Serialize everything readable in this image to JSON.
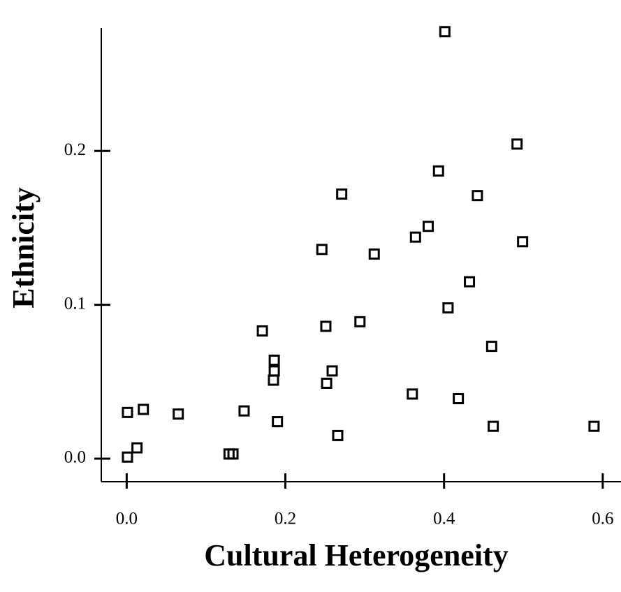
{
  "chart_data": {
    "type": "scatter",
    "x_label": "Cultural Heterogeneity",
    "y_label": "Ethnicity",
    "color": "#000000",
    "xlim": [
      -0.032,
      0.623
    ],
    "ylim": [
      -0.015,
      0.28
    ],
    "xticks": [
      {
        "value": 0,
        "label": "0.0"
      },
      0.2,
      0.4,
      0.6
    ],
    "yticks": [
      {
        "value": 0,
        "label": "0.0"
      },
      0.1,
      0.2
    ],
    "grid": false,
    "x": [
      0.401,
      0.492,
      0.393,
      0.271,
      0.442,
      0.38,
      0.364,
      0.499,
      0.246,
      0.312,
      0.432,
      0.405,
      0.171,
      0.294,
      0.251,
      0.46,
      0.186,
      0.186,
      0.185,
      0.259,
      0.252,
      0.36,
      0.418,
      0.001,
      0.021,
      0.065,
      0.148,
      0.19,
      0.266,
      0.462,
      0.589,
      0.013,
      0.001,
      0.129,
      0.134
    ],
    "values": [
      0.2776,
      0.2045,
      0.187,
      0.172,
      0.171,
      0.151,
      0.144,
      0.141,
      0.136,
      0.133,
      0.115,
      0.098,
      0.083,
      0.089,
      0.086,
      0.073,
      0.064,
      0.057,
      0.051,
      0.057,
      0.049,
      0.042,
      0.039,
      0.03,
      0.032,
      0.029,
      0.031,
      0.024,
      0.015,
      0.021,
      0.021,
      0.007,
      0.001,
      0.003,
      0.003
    ]
  }
}
